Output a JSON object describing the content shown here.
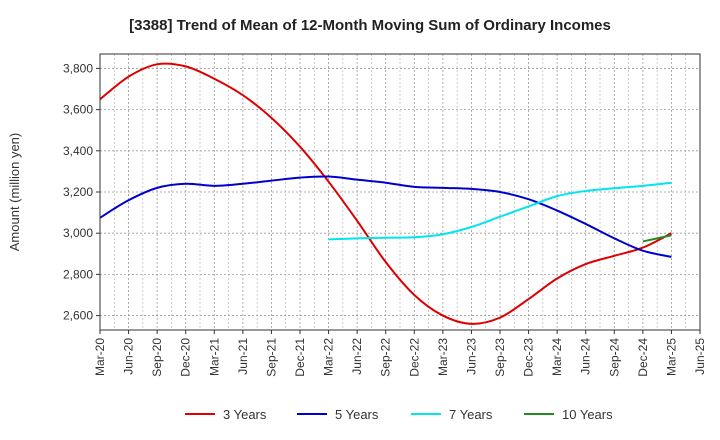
{
  "chart_data": {
    "type": "line",
    "title": "[3388]  Trend of Mean of 12-Month Moving Sum of Ordinary Incomes",
    "xlabel": "",
    "ylabel": "Amount (million yen)",
    "ylim": [
      2530,
      3870
    ],
    "y_ticks": [
      2600,
      2800,
      3000,
      3200,
      3400,
      3600,
      3800
    ],
    "y_tick_labels": [
      "2,600",
      "2,800",
      "3,000",
      "3,200",
      "3,400",
      "3,600",
      "3,800"
    ],
    "x_tick_labels": [
      "Mar-20",
      "Jun-20",
      "Sep-20",
      "Dec-20",
      "Mar-21",
      "Jun-21",
      "Sep-21",
      "Dec-21",
      "Mar-22",
      "Jun-22",
      "Sep-22",
      "Dec-22",
      "Mar-23",
      "Jun-23",
      "Sep-23",
      "Dec-23",
      "Mar-24",
      "Jun-24",
      "Sep-24",
      "Dec-24",
      "Mar-25",
      "Jun-25"
    ],
    "grid": true,
    "series": [
      {
        "name": "3 Years",
        "color": "#dd0000",
        "values": [
          3650,
          3760,
          3820,
          3810,
          3750,
          3670,
          3560,
          3420,
          3250,
          3060,
          2860,
          2700,
          2600,
          2560,
          2590,
          2680,
          2780,
          2850,
          2890,
          2930,
          3000
        ]
      },
      {
        "name": "5 Years",
        "color": "#0000cc",
        "values": [
          3075,
          3160,
          3220,
          3240,
          3230,
          3240,
          3255,
          3270,
          3275,
          3260,
          3245,
          3225,
          3220,
          3215,
          3200,
          3165,
          3110,
          3045,
          2975,
          2915,
          2885
        ]
      },
      {
        "name": "7 Years",
        "color": "#00e5ee",
        "values": [
          null,
          null,
          null,
          null,
          null,
          null,
          null,
          null,
          2970,
          2975,
          2978,
          2980,
          2995,
          3030,
          3080,
          3130,
          3180,
          3205,
          3218,
          3230,
          3245
        ]
      },
      {
        "name": "10 Years",
        "color": "#228b22",
        "values": [
          null,
          null,
          null,
          null,
          null,
          null,
          null,
          null,
          null,
          null,
          null,
          null,
          null,
          null,
          null,
          null,
          null,
          null,
          null,
          2960,
          2990
        ]
      }
    ]
  }
}
